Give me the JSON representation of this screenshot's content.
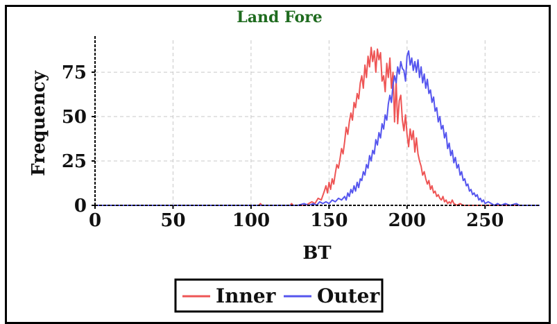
{
  "chart_data": {
    "type": "line",
    "title": "Land Fore",
    "xlabel": "BT",
    "ylabel": "Frequency",
    "xlim": [
      0,
      285
    ],
    "ylim": [
      0,
      93
    ],
    "xticks": [
      0,
      50,
      100,
      150,
      200,
      250
    ],
    "yticks": [
      0,
      25,
      50,
      75
    ],
    "grid": true,
    "legend_placement": "bottom",
    "series": [
      {
        "name": "Inner",
        "color": "#ee5555",
        "points": [
          [
            0,
            0
          ],
          [
            105,
            0
          ],
          [
            106,
            1
          ],
          [
            107,
            0
          ],
          [
            120,
            0
          ],
          [
            125,
            0
          ],
          [
            126,
            1
          ],
          [
            127,
            0
          ],
          [
            135,
            0
          ],
          [
            137,
            1
          ],
          [
            139,
            2
          ],
          [
            141,
            1
          ],
          [
            143,
            4
          ],
          [
            145,
            3
          ],
          [
            147,
            8
          ],
          [
            148,
            11
          ],
          [
            149,
            7
          ],
          [
            150,
            13
          ],
          [
            151,
            9
          ],
          [
            152,
            15
          ],
          [
            153,
            12
          ],
          [
            154,
            18
          ],
          [
            155,
            23
          ],
          [
            156,
            21
          ],
          [
            157,
            26
          ],
          [
            158,
            32
          ],
          [
            159,
            29
          ],
          [
            160,
            36
          ],
          [
            161,
            44
          ],
          [
            162,
            40
          ],
          [
            163,
            47
          ],
          [
            164,
            52
          ],
          [
            165,
            48
          ],
          [
            166,
            58
          ],
          [
            167,
            55
          ],
          [
            168,
            63
          ],
          [
            169,
            60
          ],
          [
            170,
            69
          ],
          [
            171,
            73
          ],
          [
            172,
            66
          ],
          [
            173,
            79
          ],
          [
            174,
            72
          ],
          [
            175,
            84
          ],
          [
            176,
            78
          ],
          [
            177,
            89
          ],
          [
            178,
            81
          ],
          [
            179,
            87
          ],
          [
            180,
            75
          ],
          [
            181,
            88
          ],
          [
            182,
            82
          ],
          [
            183,
            86
          ],
          [
            184,
            70
          ],
          [
            185,
            73
          ],
          [
            186,
            64
          ],
          [
            187,
            80
          ],
          [
            188,
            72
          ],
          [
            189,
            83
          ],
          [
            190,
            66
          ],
          [
            191,
            75
          ],
          [
            192,
            47
          ],
          [
            193,
            70
          ],
          [
            194,
            46
          ],
          [
            195,
            59
          ],
          [
            196,
            62
          ],
          [
            197,
            48
          ],
          [
            198,
            42
          ],
          [
            199,
            51
          ],
          [
            200,
            40
          ],
          [
            201,
            33
          ],
          [
            202,
            43
          ],
          [
            203,
            37
          ],
          [
            204,
            42
          ],
          [
            205,
            30
          ],
          [
            206,
            38
          ],
          [
            207,
            29
          ],
          [
            208,
            25
          ],
          [
            209,
            22
          ],
          [
            210,
            17
          ],
          [
            211,
            19
          ],
          [
            212,
            15
          ],
          [
            213,
            12
          ],
          [
            214,
            14
          ],
          [
            215,
            9
          ],
          [
            216,
            11
          ],
          [
            217,
            7
          ],
          [
            218,
            8
          ],
          [
            219,
            5
          ],
          [
            220,
            6
          ],
          [
            221,
            4
          ],
          [
            222,
            3
          ],
          [
            223,
            5
          ],
          [
            224,
            2
          ],
          [
            225,
            3
          ],
          [
            226,
            1
          ],
          [
            227,
            2
          ],
          [
            228,
            1
          ],
          [
            229,
            3
          ],
          [
            230,
            1
          ],
          [
            232,
            0
          ],
          [
            234,
            1
          ],
          [
            236,
            0
          ],
          [
            240,
            0
          ],
          [
            285,
            0
          ]
        ]
      },
      {
        "name": "Outer",
        "color": "#5555ee",
        "points": [
          [
            0,
            0
          ],
          [
            130,
            0
          ],
          [
            134,
            1
          ],
          [
            137,
            0
          ],
          [
            140,
            1
          ],
          [
            142,
            0
          ],
          [
            144,
            2
          ],
          [
            146,
            1
          ],
          [
            148,
            2
          ],
          [
            150,
            1
          ],
          [
            152,
            3
          ],
          [
            154,
            2
          ],
          [
            156,
            4
          ],
          [
            158,
            3
          ],
          [
            160,
            5
          ],
          [
            161,
            3
          ],
          [
            162,
            7
          ],
          [
            163,
            5
          ],
          [
            164,
            9
          ],
          [
            165,
            7
          ],
          [
            166,
            11
          ],
          [
            167,
            8
          ],
          [
            168,
            13
          ],
          [
            169,
            10
          ],
          [
            170,
            15
          ],
          [
            171,
            14
          ],
          [
            172,
            19
          ],
          [
            173,
            17
          ],
          [
            174,
            23
          ],
          [
            175,
            21
          ],
          [
            176,
            28
          ],
          [
            177,
            25
          ],
          [
            178,
            31
          ],
          [
            179,
            29
          ],
          [
            180,
            37
          ],
          [
            181,
            34
          ],
          [
            182,
            41
          ],
          [
            183,
            38
          ],
          [
            184,
            46
          ],
          [
            185,
            43
          ],
          [
            186,
            51
          ],
          [
            187,
            48
          ],
          [
            188,
            57
          ],
          [
            189,
            62
          ],
          [
            190,
            58
          ],
          [
            191,
            68
          ],
          [
            192,
            73
          ],
          [
            193,
            69
          ],
          [
            194,
            78
          ],
          [
            195,
            74
          ],
          [
            196,
            81
          ],
          [
            197,
            77
          ],
          [
            198,
            76
          ],
          [
            199,
            70
          ],
          [
            200,
            84
          ],
          [
            201,
            87
          ],
          [
            202,
            79
          ],
          [
            203,
            83
          ],
          [
            204,
            76
          ],
          [
            205,
            81
          ],
          [
            206,
            75
          ],
          [
            207,
            82
          ],
          [
            208,
            72
          ],
          [
            209,
            78
          ],
          [
            210,
            69
          ],
          [
            211,
            74
          ],
          [
            212,
            66
          ],
          [
            213,
            71
          ],
          [
            214,
            63
          ],
          [
            215,
            65
          ],
          [
            216,
            58
          ],
          [
            217,
            61
          ],
          [
            218,
            53
          ],
          [
            219,
            55
          ],
          [
            220,
            47
          ],
          [
            221,
            50
          ],
          [
            222,
            43
          ],
          [
            223,
            45
          ],
          [
            224,
            38
          ],
          [
            225,
            41
          ],
          [
            226,
            32
          ],
          [
            227,
            35
          ],
          [
            228,
            28
          ],
          [
            229,
            31
          ],
          [
            230,
            24
          ],
          [
            231,
            27
          ],
          [
            232,
            21
          ],
          [
            233,
            23
          ],
          [
            234,
            17
          ],
          [
            235,
            19
          ],
          [
            236,
            14
          ],
          [
            237,
            15
          ],
          [
            238,
            11
          ],
          [
            239,
            12
          ],
          [
            240,
            8
          ],
          [
            241,
            9
          ],
          [
            242,
            6
          ],
          [
            243,
            7
          ],
          [
            244,
            5
          ],
          [
            245,
            6
          ],
          [
            246,
            3
          ],
          [
            247,
            4
          ],
          [
            248,
            2
          ],
          [
            249,
            3
          ],
          [
            250,
            1
          ],
          [
            252,
            2
          ],
          [
            254,
            1
          ],
          [
            256,
            0
          ],
          [
            258,
            1
          ],
          [
            260,
            0
          ],
          [
            263,
            1
          ],
          [
            266,
            0
          ],
          [
            270,
            1
          ],
          [
            272,
            0
          ],
          [
            285,
            0
          ]
        ]
      }
    ]
  }
}
